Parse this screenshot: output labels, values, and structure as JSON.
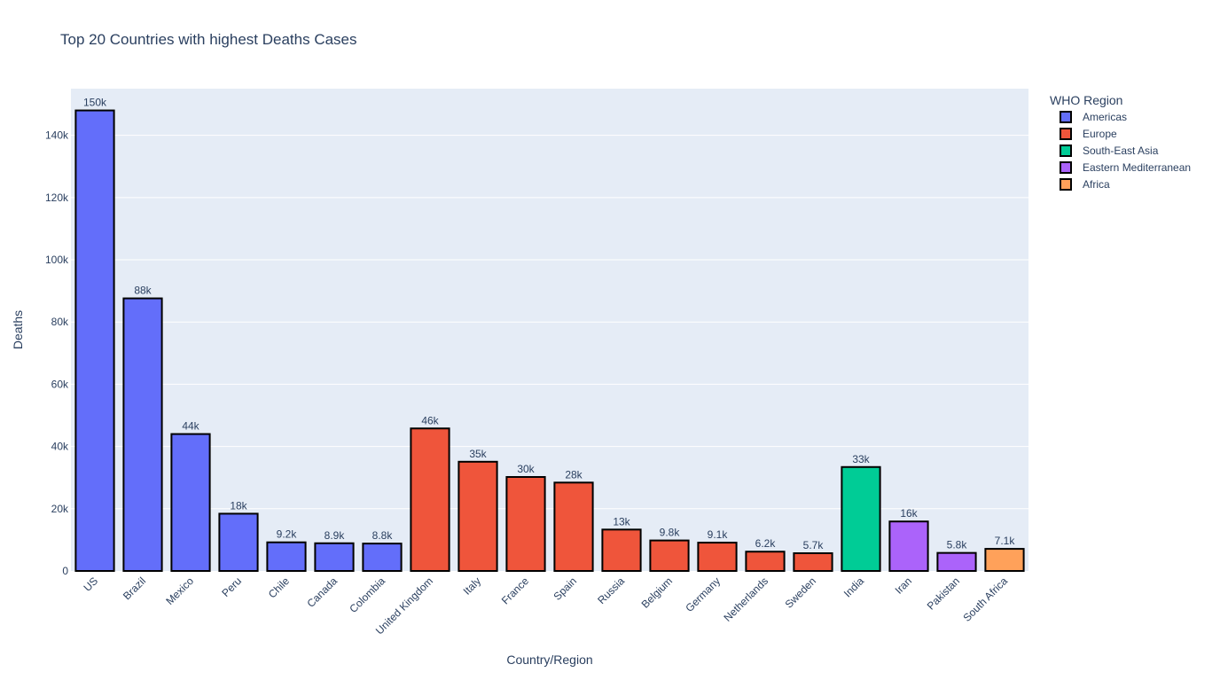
{
  "chart_data": {
    "type": "bar",
    "title": "Top 20 Countries with highest Deaths Cases",
    "xlabel": "Country/Region",
    "ylabel": "Deaths",
    "ylim": [
      0,
      155000
    ],
    "y_ticks": [
      {
        "value": 0,
        "label": "0"
      },
      {
        "value": 20000,
        "label": "20k"
      },
      {
        "value": 40000,
        "label": "40k"
      },
      {
        "value": 60000,
        "label": "60k"
      },
      {
        "value": 80000,
        "label": "80k"
      },
      {
        "value": 100000,
        "label": "100k"
      },
      {
        "value": 120000,
        "label": "120k"
      },
      {
        "value": 140000,
        "label": "140k"
      }
    ],
    "grid": true,
    "legend": {
      "title": "WHO Region",
      "placement": "right",
      "entries": [
        {
          "name": "Americas",
          "color": "#636efa"
        },
        {
          "name": "Europe",
          "color": "#ef553b"
        },
        {
          "name": "South-East Asia",
          "color": "#00cc96"
        },
        {
          "name": "Eastern Mediterranean",
          "color": "#ab63fa"
        },
        {
          "name": "Africa",
          "color": "#ffa15a"
        }
      ]
    },
    "categories": [
      "US",
      "Brazil",
      "Mexico",
      "Peru",
      "Chile",
      "Canada",
      "Colombia",
      "United Kingdom",
      "Italy",
      "France",
      "Spain",
      "Russia",
      "Belgium",
      "Germany",
      "Netherlands",
      "Sweden",
      "India",
      "Iran",
      "Pakistan",
      "South Africa"
    ],
    "bars": [
      {
        "country": "US",
        "value": 148000,
        "label": "150k",
        "region": "Americas"
      },
      {
        "country": "Brazil",
        "value": 87600,
        "label": "88k",
        "region": "Americas"
      },
      {
        "country": "Mexico",
        "value": 44000,
        "label": "44k",
        "region": "Americas"
      },
      {
        "country": "Peru",
        "value": 18400,
        "label": "18k",
        "region": "Americas"
      },
      {
        "country": "Chile",
        "value": 9200,
        "label": "9.2k",
        "region": "Americas"
      },
      {
        "country": "Canada",
        "value": 8900,
        "label": "8.9k",
        "region": "Americas"
      },
      {
        "country": "Colombia",
        "value": 8800,
        "label": "8.8k",
        "region": "Americas"
      },
      {
        "country": "United Kingdom",
        "value": 45800,
        "label": "46k",
        "region": "Europe"
      },
      {
        "country": "Italy",
        "value": 35100,
        "label": "35k",
        "region": "Europe"
      },
      {
        "country": "France",
        "value": 30200,
        "label": "30k",
        "region": "Europe"
      },
      {
        "country": "Spain",
        "value": 28400,
        "label": "28k",
        "region": "Europe"
      },
      {
        "country": "Russia",
        "value": 13300,
        "label": "13k",
        "region": "Europe"
      },
      {
        "country": "Belgium",
        "value": 9800,
        "label": "9.8k",
        "region": "Europe"
      },
      {
        "country": "Germany",
        "value": 9100,
        "label": "9.1k",
        "region": "Europe"
      },
      {
        "country": "Netherlands",
        "value": 6200,
        "label": "6.2k",
        "region": "Europe"
      },
      {
        "country": "Sweden",
        "value": 5700,
        "label": "5.7k",
        "region": "Europe"
      },
      {
        "country": "India",
        "value": 33400,
        "label": "33k",
        "region": "South-East Asia"
      },
      {
        "country": "Iran",
        "value": 15900,
        "label": "16k",
        "region": "Eastern Mediterranean"
      },
      {
        "country": "Pakistan",
        "value": 5800,
        "label": "5.8k",
        "region": "Eastern Mediterranean"
      },
      {
        "country": "South Africa",
        "value": 7100,
        "label": "7.1k",
        "region": "Africa"
      }
    ]
  }
}
